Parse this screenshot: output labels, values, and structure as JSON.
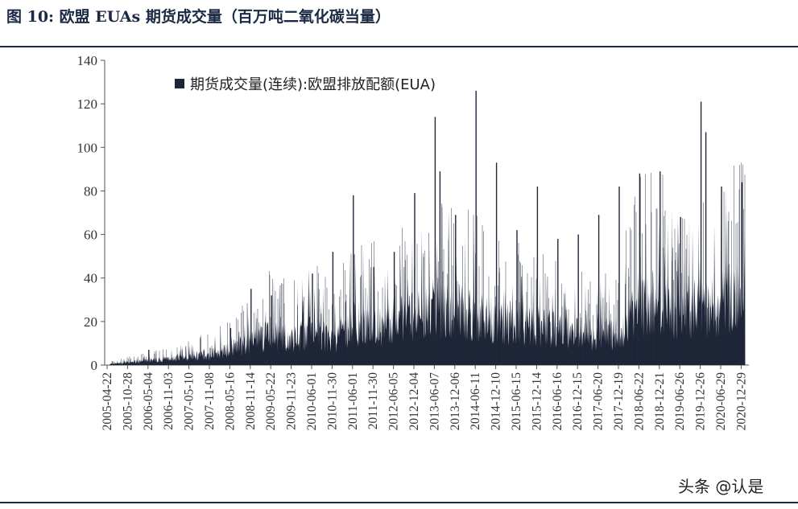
{
  "figure": {
    "title": "图 10:  欧盟 EUAs 期货成交量（百万吨二氧化碳当量）",
    "watermark": "头条 @认是"
  },
  "chart_data": {
    "type": "area",
    "title": "",
    "xlabel": "",
    "ylabel": "",
    "ylim": [
      0,
      140
    ],
    "yticks": [
      0,
      20,
      40,
      60,
      80,
      100,
      120,
      140
    ],
    "grid": false,
    "legend_position": "top-left",
    "x_tick_labels": [
      "2005-04-22",
      "2005-10-28",
      "2006-05-04",
      "2006-11-03",
      "2007-05-10",
      "2007-11-08",
      "2008-05-16",
      "2008-11-14",
      "2009-05-22",
      "2009-11-23",
      "2010-06-01",
      "2010-11-30",
      "2011-06-01",
      "2011-11-30",
      "2012-06-05",
      "2012-12-04",
      "2013-06-07",
      "2013-12-06",
      "2014-06-11",
      "2014-12-10",
      "2015-06-15",
      "2015-12-14",
      "2016-06-16",
      "2016-12-15",
      "2017-06-20",
      "2017-12-19",
      "2018-06-22",
      "2018-12-21",
      "2019-06-26",
      "2019-12-26",
      "2020-06-29",
      "2020-12-29"
    ],
    "series": [
      {
        "name": "期货成交量(连续):欧盟排放配额(EUA)",
        "color": "#1f2638",
        "base_by_tick": [
          0.5,
          1.5,
          2.5,
          3.5,
          5,
          6,
          9,
          13,
          18,
          15,
          21,
          14,
          24,
          23,
          25,
          28,
          34,
          31,
          28,
          25,
          24,
          22,
          20,
          18,
          17,
          19,
          35,
          36,
          30,
          33,
          36,
          42
        ],
        "spikes": [
          {
            "x": "2006-05-04",
            "y": 7
          },
          {
            "x": "2008-05-16",
            "y": 17
          },
          {
            "x": "2008-11-14",
            "y": 35
          },
          {
            "x": "2009-05-22",
            "y": 32
          },
          {
            "x": "2010-06-01",
            "y": 42
          },
          {
            "x": "2010-11-30",
            "y": 52
          },
          {
            "x": "2011-06-01",
            "y": 78
          },
          {
            "x": "2011-11-30",
            "y": 45
          },
          {
            "x": "2012-06-05",
            "y": 52
          },
          {
            "x": "2012-12-04",
            "y": 79
          },
          {
            "x": "2013-06-07",
            "y": 114
          },
          {
            "x": "2013-06-07",
            "y": 89
          },
          {
            "x": "2013-12-06",
            "y": 69
          },
          {
            "x": "2014-06-11",
            "y": 126
          },
          {
            "x": "2014-12-10",
            "y": 93
          },
          {
            "x": "2015-06-15",
            "y": 62
          },
          {
            "x": "2015-12-14",
            "y": 82
          },
          {
            "x": "2016-06-16",
            "y": 58
          },
          {
            "x": "2016-12-15",
            "y": 60
          },
          {
            "x": "2017-06-20",
            "y": 69
          },
          {
            "x": "2017-12-19",
            "y": 82
          },
          {
            "x": "2018-06-22",
            "y": 88
          },
          {
            "x": "2018-12-21",
            "y": 89
          },
          {
            "x": "2019-06-26",
            "y": 68
          },
          {
            "x": "2019-12-26",
            "y": 121
          },
          {
            "x": "2019-12-26",
            "y": 107
          },
          {
            "x": "2020-06-29",
            "y": 82
          },
          {
            "x": "2020-12-29",
            "y": 84
          }
        ]
      }
    ]
  }
}
